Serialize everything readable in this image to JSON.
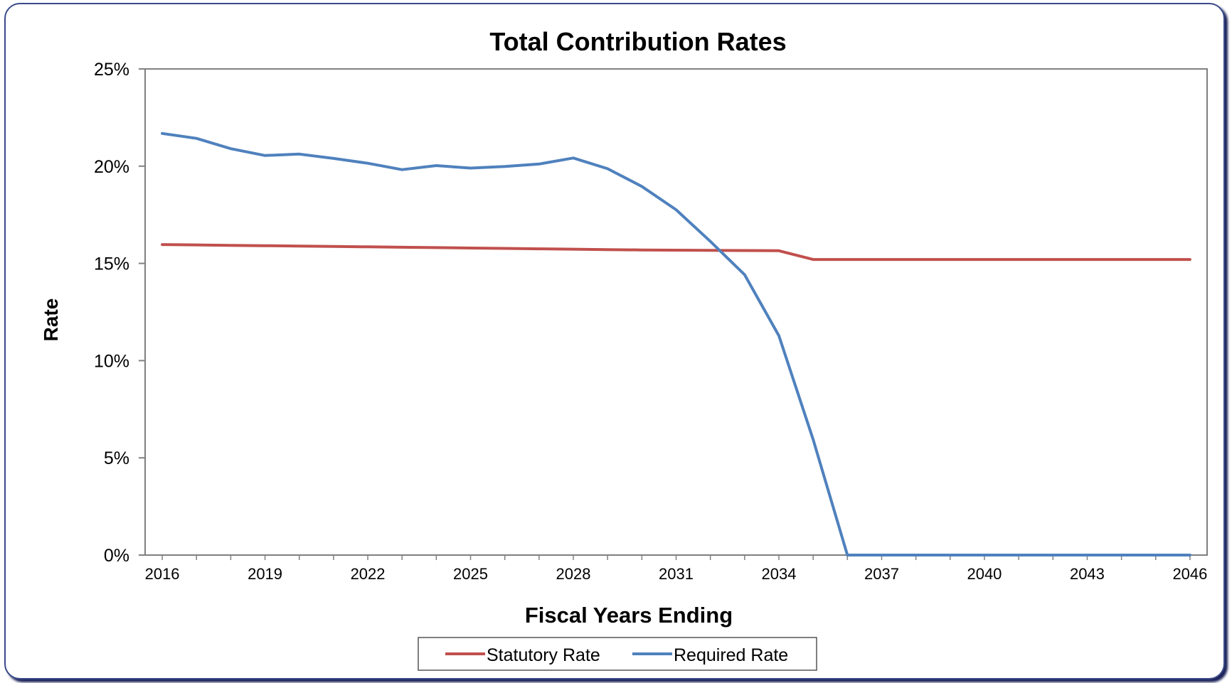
{
  "chart_data": {
    "type": "line",
    "title": "Total Contribution Rates",
    "xlabel": "Fiscal Years Ending",
    "ylabel": "Rate",
    "x": [
      2016,
      2017,
      2018,
      2019,
      2020,
      2021,
      2022,
      2023,
      2024,
      2025,
      2026,
      2027,
      2028,
      2029,
      2030,
      2031,
      2032,
      2033,
      2034,
      2035,
      2036,
      2037,
      2038,
      2039,
      2040,
      2041,
      2042,
      2043,
      2044,
      2045,
      2046
    ],
    "x_ticks": [
      "2016",
      "2019",
      "2022",
      "2025",
      "2028",
      "2031",
      "2034",
      "2037",
      "2040",
      "2043",
      "2046"
    ],
    "xlim": [
      2015.5,
      2046.5
    ],
    "ylim": [
      0,
      0.25
    ],
    "y_ticks": [
      {
        "value": 0,
        "label": "0%"
      },
      {
        "value": 0.05,
        "label": "5%"
      },
      {
        "value": 0.1,
        "label": "10%"
      },
      {
        "value": 0.15,
        "label": "15%"
      },
      {
        "value": 0.2,
        "label": "20%"
      },
      {
        "value": 0.25,
        "label": "25%"
      }
    ],
    "grid": false,
    "legend_position": "bottom",
    "series": [
      {
        "name": "Statutory Rate",
        "color": "#c0504d",
        "values": [
          0.1597,
          0.1595,
          0.1593,
          0.1591,
          0.1589,
          0.1587,
          0.1585,
          0.1583,
          0.1581,
          0.1579,
          0.1577,
          0.1575,
          0.1573,
          0.1571,
          0.1569,
          0.1568,
          0.1567,
          0.1566,
          0.1565,
          0.152,
          0.152,
          0.152,
          0.152,
          0.152,
          0.152,
          0.152,
          0.152,
          0.152,
          0.152,
          0.152,
          0.152
        ]
      },
      {
        "name": "Required Rate",
        "color": "#4f81bd",
        "values": [
          0.2168,
          0.2143,
          0.209,
          0.2055,
          0.2062,
          0.204,
          0.2015,
          0.1982,
          0.2003,
          0.199,
          0.1998,
          0.2011,
          0.2042,
          0.1987,
          0.1896,
          0.1776,
          0.1613,
          0.1442,
          0.1128,
          0.0595,
          0.0,
          0.0,
          0.0,
          0.0,
          0.0,
          0.0,
          0.0,
          0.0,
          0.0,
          0.0,
          0.0
        ]
      }
    ]
  }
}
